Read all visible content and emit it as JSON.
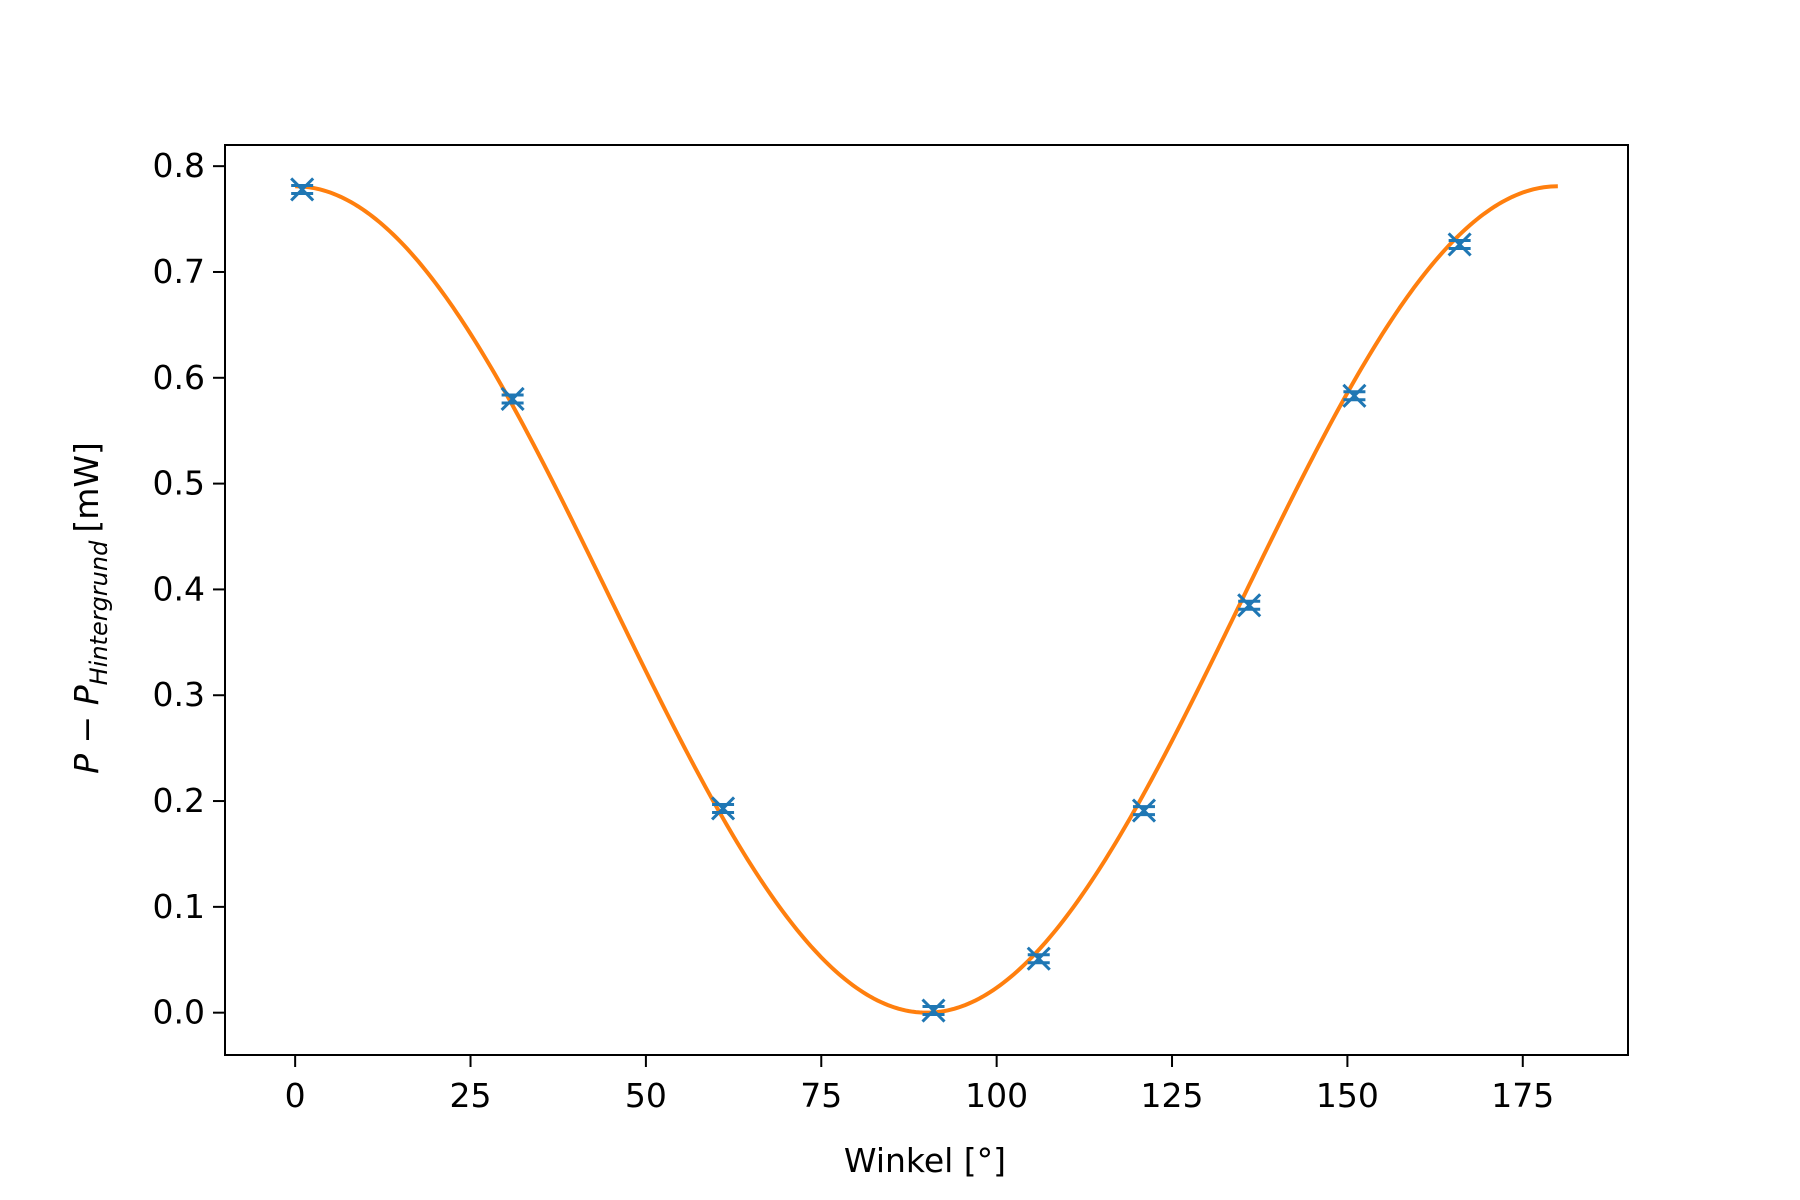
{
  "chart_data": {
    "type": "scatter",
    "xlabel": "Winkel [°]",
    "ylabel": {
      "symbol": "P",
      "operator": "−",
      "symbol2": "P",
      "subscript": "Hintergrund",
      "unit": "[mW]"
    },
    "xlim": [
      -10,
      190
    ],
    "ylim": [
      -0.04,
      0.82
    ],
    "xticks": [
      0,
      25,
      50,
      75,
      100,
      125,
      150,
      175
    ],
    "yticks": [
      0.0,
      0.1,
      0.2,
      0.3,
      0.4,
      0.5,
      0.6,
      0.7,
      0.8
    ],
    "grid": false,
    "series": [
      {
        "kind": "markers",
        "marker": "x-with-errorbar",
        "color": "#1f77b4",
        "x": [
          1,
          31,
          61,
          91,
          106,
          121,
          136,
          151,
          166
        ],
        "y": [
          0.778,
          0.58,
          0.193,
          0.002,
          0.051,
          0.191,
          0.385,
          0.583,
          0.726
        ]
      },
      {
        "kind": "fit-line",
        "color": "#ff7f0e",
        "function": "A*cos^2(x-phi)",
        "A": 0.781,
        "phi": 0,
        "x_range": [
          0,
          180
        ]
      }
    ]
  }
}
